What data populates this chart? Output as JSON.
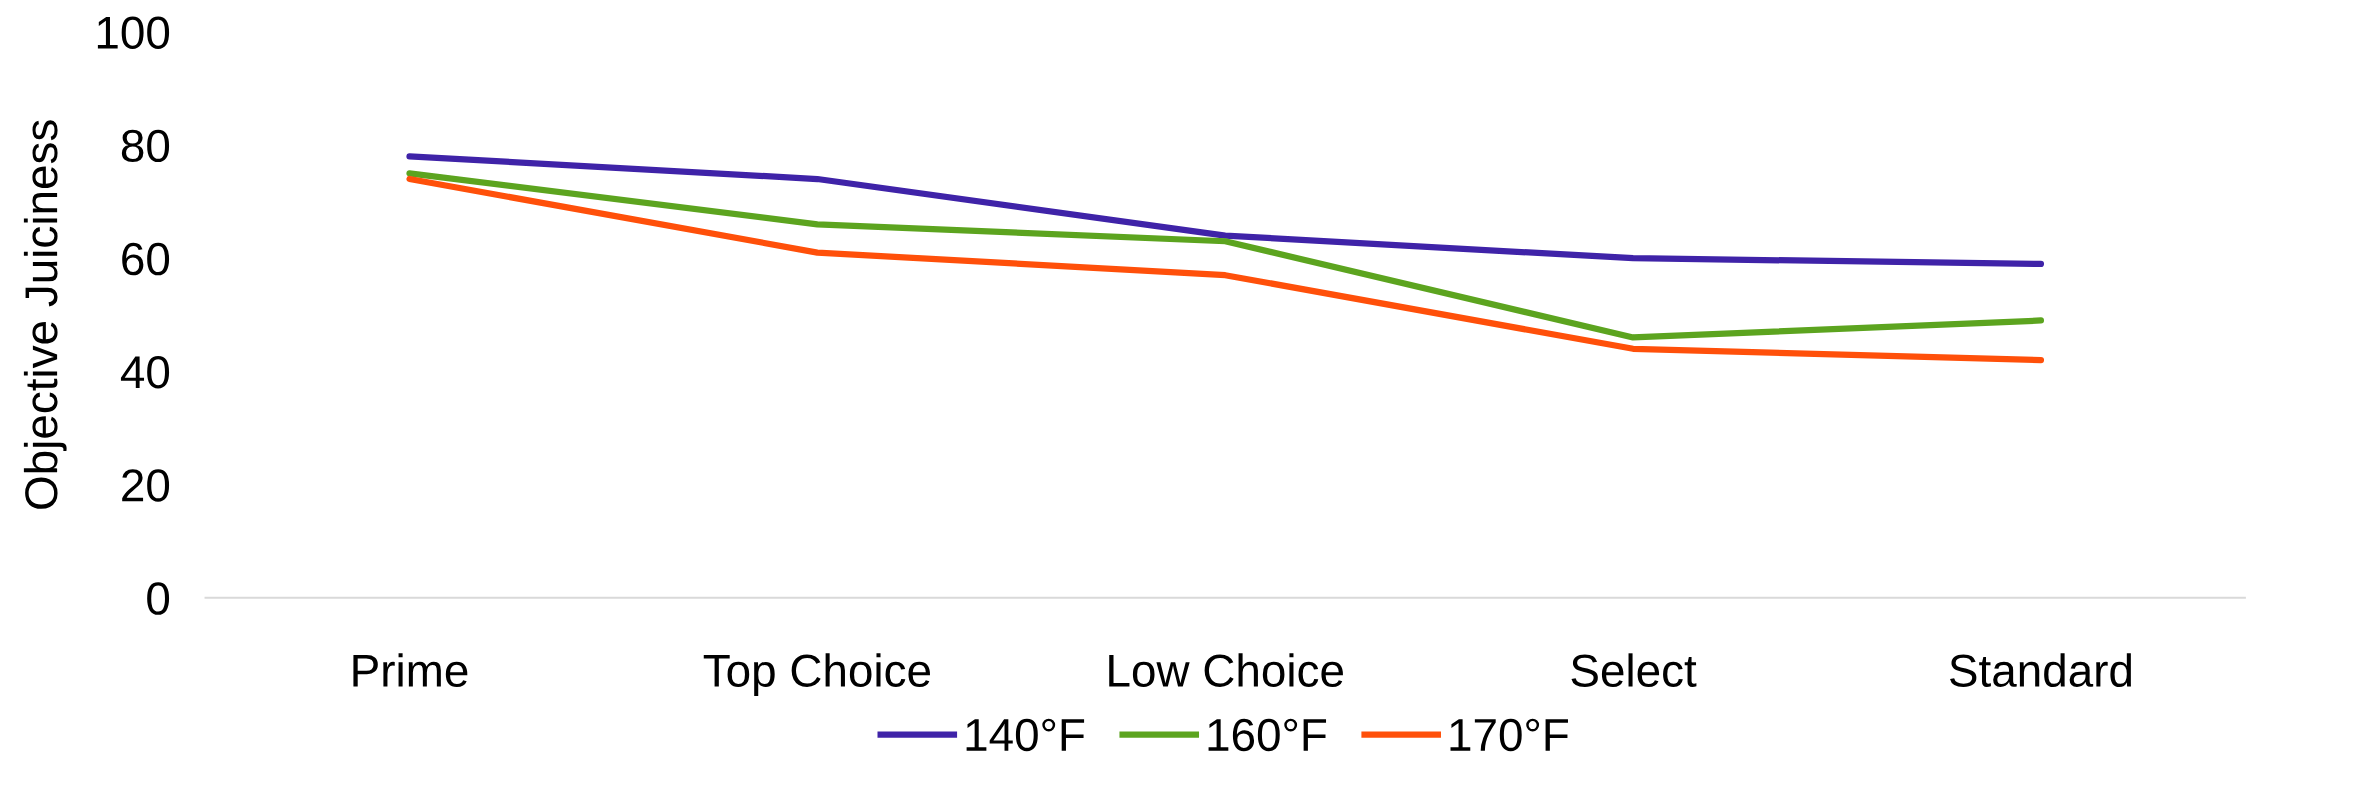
{
  "chart_data": {
    "type": "line",
    "ylabel": "Objective Juiciness",
    "categories": [
      "Prime",
      "Top Choice",
      "Low Choice",
      "Select",
      "Standard"
    ],
    "series": [
      {
        "name": "140°F",
        "color": "#3f23a8",
        "values": [
          78,
          74,
          64,
          60,
          59
        ]
      },
      {
        "name": "160°F",
        "color": "#5ca41f",
        "values": [
          75,
          66,
          63,
          46,
          49
        ]
      },
      {
        "name": "170°F",
        "color": "#ff500a",
        "values": [
          74,
          61,
          57,
          44,
          42
        ]
      }
    ],
    "ylim": [
      0,
      100
    ],
    "yticks": [
      0,
      20,
      40,
      60,
      80,
      100
    ],
    "grid": false,
    "legend": "bottom",
    "marker": "none",
    "line_style": "solid"
  }
}
